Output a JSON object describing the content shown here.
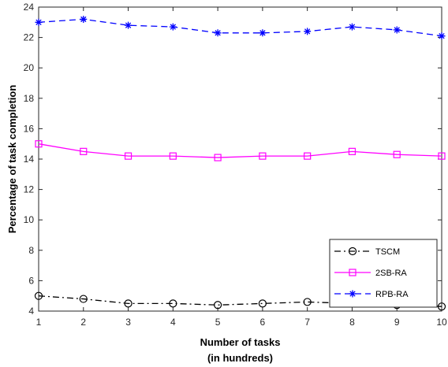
{
  "chart_data": {
    "type": "line",
    "xlabel": [
      "Number of tasks",
      "(in hundreds)"
    ],
    "ylabel": "Percentage of task completion",
    "x": [
      1,
      2,
      3,
      4,
      5,
      6,
      7,
      8,
      9,
      10
    ],
    "xlim": [
      1,
      10
    ],
    "ylim": [
      4,
      24
    ],
    "xticks": [
      1,
      2,
      3,
      4,
      5,
      6,
      7,
      8,
      9,
      10
    ],
    "yticks": [
      4,
      6,
      8,
      10,
      12,
      14,
      16,
      18,
      20,
      22,
      24
    ],
    "grid": false,
    "legend_position": "bottom-right",
    "series": [
      {
        "name": "TSCM",
        "color": "#000000",
        "line_style": "dash-dot",
        "marker": "circle",
        "values": [
          5.0,
          4.8,
          4.5,
          4.5,
          4.4,
          4.5,
          4.6,
          4.5,
          4.4,
          4.3
        ]
      },
      {
        "name": "2SB-RA",
        "color": "#ff00ff",
        "line_style": "solid",
        "marker": "square",
        "values": [
          15.0,
          14.5,
          14.2,
          14.2,
          14.1,
          14.2,
          14.2,
          14.5,
          14.3,
          14.2
        ]
      },
      {
        "name": "RPB-RA",
        "color": "#0000ff",
        "line_style": "dashed",
        "marker": "asterisk",
        "values": [
          23.0,
          23.2,
          22.8,
          22.7,
          22.3,
          22.3,
          22.4,
          22.7,
          22.5,
          22.1
        ]
      }
    ]
  }
}
